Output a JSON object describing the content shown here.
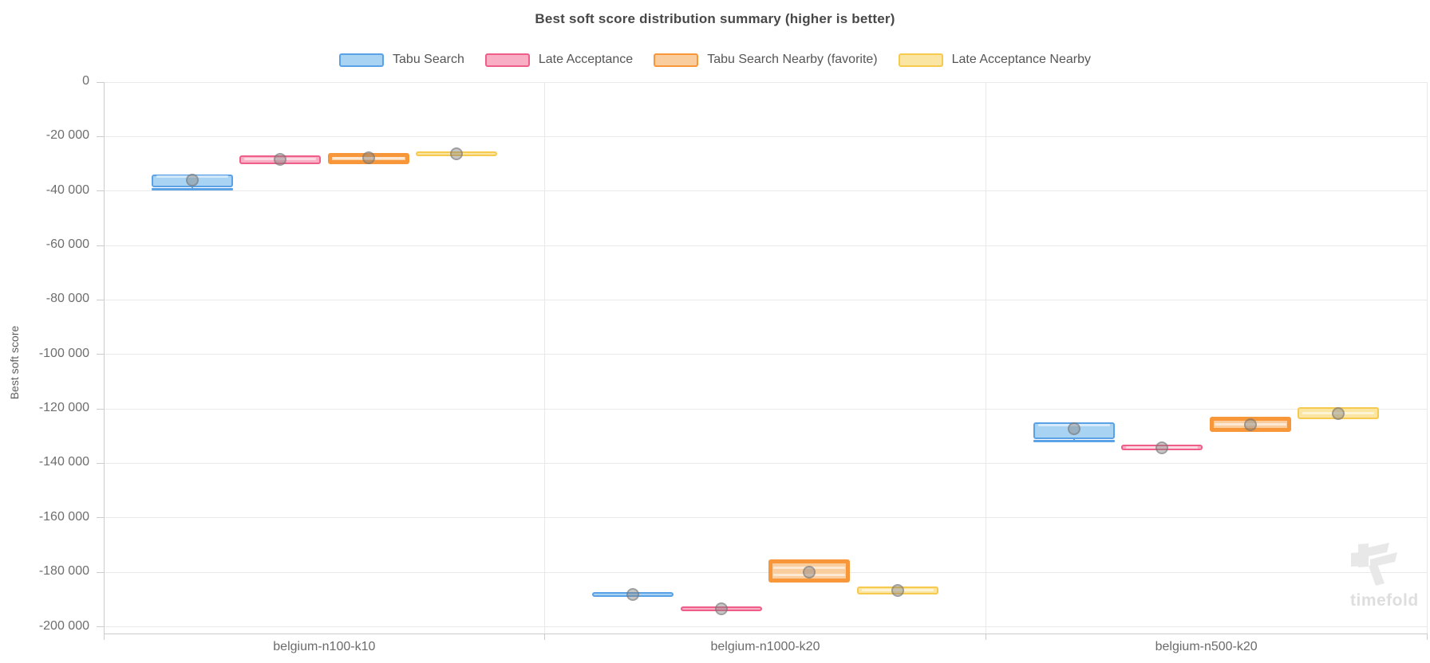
{
  "title": "Best soft score distribution summary (higher is better)",
  "y_axis": {
    "label": "Best soft score",
    "ticks": [
      "0",
      "-20 000",
      "-40 000",
      "-60 000",
      "-80 000",
      "-100 000",
      "-120 000",
      "-140 000",
      "-160 000",
      "-180 000",
      "-200 000"
    ],
    "tick_values": [
      0,
      -20000,
      -40000,
      -60000,
      -80000,
      -100000,
      -120000,
      -140000,
      -160000,
      -180000,
      -200000
    ]
  },
  "x_axis": {
    "categories": [
      "belgium-n100-k10",
      "belgium-n1000-k20",
      "belgium-n500-k20"
    ]
  },
  "watermark": {
    "brand": "timefold"
  },
  "colors": {
    "grid": "#e9e9e9",
    "axis": "#cccccc",
    "title_text": "#484848",
    "tick_text": "#6e6e6e",
    "mean_marker": "#828282",
    "watermark": "#e8e8e8"
  },
  "chart_data": {
    "type": "boxplot",
    "title": "Best soft score distribution summary (higher is better)",
    "xlabel": "",
    "ylabel": "Best soft score",
    "ylim": [
      -202500,
      0
    ],
    "grid": true,
    "legend_position": "top",
    "categories": [
      "belgium-n100-k10",
      "belgium-n1000-k20",
      "belgium-n500-k20"
    ],
    "series": [
      {
        "name": "Tabu Search",
        "favorite": false,
        "border_color": "#5BA1E5",
        "fill_color": "#A9D3F3",
        "boxes": [
          {
            "min": -39500,
            "q1": -38600,
            "median": -34800,
            "q3": -34000,
            "max": -34000,
            "mean": -35900
          },
          {
            "min": -189100,
            "q1": -189100,
            "median": -188200,
            "q3": -187200,
            "max": -187200,
            "mean": -188100
          },
          {
            "min": -131800,
            "q1": -131000,
            "median": -125900,
            "q3": -124900,
            "max": -124900,
            "mean": -127400
          }
        ]
      },
      {
        "name": "Late Acceptance",
        "favorite": false,
        "border_color": "#EE5E88",
        "fill_color": "#F8AEC4",
        "boxes": [
          {
            "min": -30100,
            "q1": -30100,
            "median": -28300,
            "q3": -26900,
            "max": -26900,
            "mean": -28500
          },
          {
            "min": -194400,
            "q1": -194400,
            "median": -193500,
            "q3": -192600,
            "max": -192600,
            "mean": -193500
          },
          {
            "min": -135200,
            "q1": -135200,
            "median": -134200,
            "q3": -133200,
            "max": -133200,
            "mean": -134200
          }
        ]
      },
      {
        "name": "Tabu Search Nearby (favorite)",
        "favorite": true,
        "border_color": "#F8973A",
        "fill_color": "#FACD9F",
        "boxes": [
          {
            "min": -30100,
            "q1": -30100,
            "median": -27900,
            "q3": -26100,
            "max": -26100,
            "mean": -27900
          },
          {
            "min": -183900,
            "q1": -183900,
            "median": -178300,
            "median2": -181100,
            "q3": -175300,
            "max": -175300,
            "mean": -180000
          },
          {
            "min": -128400,
            "q1": -128400,
            "median": -125800,
            "q3": -123000,
            "max": -123000,
            "mean": -125800
          }
        ]
      },
      {
        "name": "Late Acceptance Nearby",
        "favorite": false,
        "border_color": "#F6C94F",
        "fill_color": "#FBE5A2",
        "boxes": [
          {
            "min": -27200,
            "q1": -27200,
            "median": -26200,
            "q3": -25600,
            "max": -25600,
            "mean": -26200
          },
          {
            "min": -188100,
            "q1": -188100,
            "median": -186500,
            "q3": -185200,
            "max": -185200,
            "mean": -186700
          },
          {
            "min": -123900,
            "q1": -123900,
            "median": -121600,
            "q3": -119300,
            "max": -119300,
            "mean": -121800
          }
        ]
      }
    ]
  }
}
